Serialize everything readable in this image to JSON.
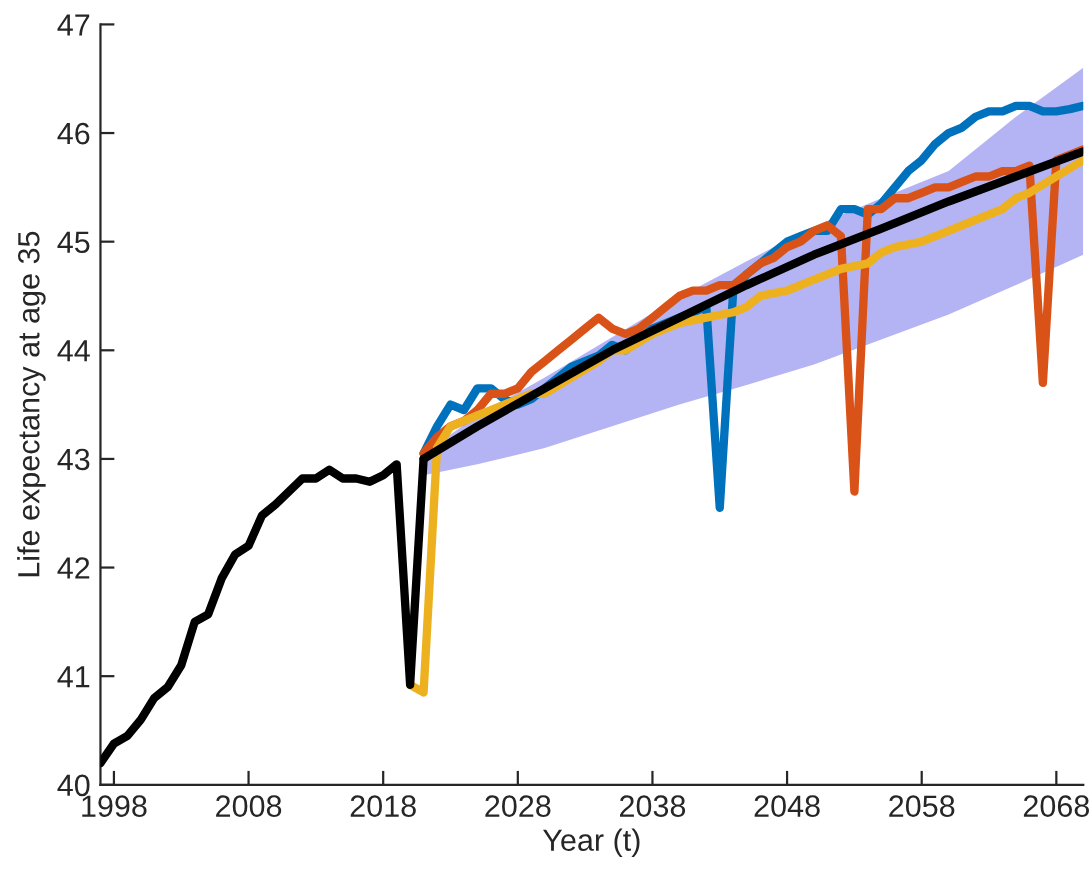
{
  "chart_data": {
    "type": "line",
    "xlabel": "Year (t)",
    "ylabel": "Life expectancy at age 35",
    "xlim": [
      1997,
      2070
    ],
    "ylim": [
      40,
      47
    ],
    "xticks": [
      1998,
      2008,
      2018,
      2028,
      2038,
      2048,
      2058,
      2068
    ],
    "yticks": [
      40,
      41,
      42,
      43,
      44,
      45,
      46,
      47
    ],
    "grid": false,
    "legend": false,
    "line_style": "solid",
    "marker": "none",
    "series": [
      {
        "color": "#0072bd",
        "x": [
          2021,
          2022,
          2023,
          2024,
          2025,
          2026,
          2027,
          2028,
          2029,
          2030,
          2031,
          2032,
          2033,
          2034,
          2035,
          2036,
          2037,
          2038,
          2039,
          2040,
          2041,
          2042,
          2043,
          2044,
          2045,
          2046,
          2047,
          2048,
          2049,
          2050,
          2051,
          2052,
          2053,
          2054,
          2055,
          2056,
          2057,
          2058,
          2059,
          2060,
          2061,
          2062,
          2063,
          2064,
          2065,
          2066,
          2067,
          2068,
          2069,
          2070
        ],
        "values": [
          43.05,
          43.3,
          43.5,
          43.45,
          43.65,
          43.65,
          43.55,
          43.5,
          43.55,
          43.65,
          43.75,
          43.85,
          43.9,
          43.95,
          44.05,
          44.0,
          44.1,
          44.2,
          44.25,
          44.3,
          44.35,
          44.4,
          42.55,
          44.55,
          44.7,
          44.8,
          44.9,
          45.0,
          45.05,
          45.1,
          45.1,
          45.3,
          45.3,
          45.25,
          45.35,
          45.5,
          45.65,
          45.75,
          45.9,
          46.0,
          46.05,
          46.15,
          46.2,
          46.2,
          46.25,
          46.25,
          46.2,
          46.2,
          46.22,
          46.25
        ]
      },
      {
        "color": "#d95319",
        "x": [
          2021,
          2022,
          2023,
          2024,
          2025,
          2026,
          2027,
          2028,
          2029,
          2030,
          2031,
          2032,
          2033,
          2034,
          2035,
          2036,
          2037,
          2038,
          2039,
          2040,
          2041,
          2042,
          2043,
          2044,
          2045,
          2046,
          2047,
          2048,
          2049,
          2050,
          2051,
          2052,
          2053,
          2054,
          2055,
          2056,
          2057,
          2058,
          2059,
          2060,
          2061,
          2062,
          2063,
          2064,
          2065,
          2066,
          2067,
          2068,
          2069,
          2070
        ],
        "values": [
          43.05,
          43.2,
          43.3,
          43.35,
          43.45,
          43.6,
          43.6,
          43.65,
          43.8,
          43.9,
          44.0,
          44.1,
          44.2,
          44.3,
          44.2,
          44.15,
          44.2,
          44.3,
          44.4,
          44.5,
          44.55,
          44.55,
          44.6,
          44.6,
          44.7,
          44.8,
          44.85,
          44.95,
          45.0,
          45.1,
          45.15,
          45.05,
          42.7,
          45.3,
          45.3,
          45.4,
          45.4,
          45.45,
          45.5,
          45.5,
          45.55,
          45.6,
          45.6,
          45.65,
          45.65,
          45.7,
          43.7,
          45.75,
          45.8,
          45.85
        ]
      },
      {
        "color": "#edb120",
        "x": [
          2020,
          2021,
          2022,
          2023,
          2024,
          2025,
          2026,
          2027,
          2028,
          2029,
          2030,
          2032,
          2034,
          2035,
          2036,
          2038,
          2040,
          2042,
          2044,
          2045,
          2046,
          2048,
          2050,
          2052,
          2054,
          2055,
          2056,
          2058,
          2060,
          2062,
          2064,
          2065,
          2066,
          2068,
          2070
        ],
        "values": [
          40.92,
          40.85,
          43.1,
          43.3,
          43.35,
          43.4,
          43.45,
          43.5,
          43.55,
          43.6,
          43.6,
          43.75,
          43.9,
          44.0,
          44.0,
          44.15,
          44.25,
          44.3,
          44.35,
          44.4,
          44.5,
          44.55,
          44.65,
          44.75,
          44.8,
          44.9,
          44.95,
          45.0,
          45.1,
          45.2,
          45.3,
          45.4,
          45.45,
          45.6,
          45.75
        ]
      },
      {
        "color": "#000000",
        "x": [
          1997,
          1998,
          1999,
          2000,
          2001,
          2002,
          2003,
          2004,
          2005,
          2006,
          2007,
          2008,
          2009,
          2010,
          2011,
          2012,
          2013,
          2014,
          2015,
          2016,
          2017,
          2018,
          2019,
          2020,
          2021
        ],
        "values": [
          40.2,
          40.38,
          40.45,
          40.6,
          40.8,
          40.9,
          41.1,
          41.5,
          41.57,
          41.9,
          42.12,
          42.2,
          42.48,
          42.58,
          42.7,
          42.82,
          42.82,
          42.9,
          42.82,
          42.82,
          42.79,
          42.85,
          42.95,
          40.92,
          43.0
        ]
      },
      {
        "color": "#000000",
        "x": [
          2021,
          2025,
          2030,
          2035,
          2040,
          2045,
          2050,
          2055,
          2060,
          2065,
          2070
        ],
        "values": [
          43.0,
          43.3,
          43.65,
          44.0,
          44.3,
          44.6,
          44.88,
          45.12,
          45.37,
          45.6,
          45.83
        ],
        "lower": [
          42.85,
          42.95,
          43.1,
          43.3,
          43.5,
          43.68,
          43.87,
          44.1,
          44.33,
          44.6,
          44.88
        ],
        "upper": [
          43.05,
          43.4,
          43.75,
          44.12,
          44.49,
          44.82,
          45.14,
          45.4,
          45.65,
          46.15,
          46.6
        ]
      }
    ]
  }
}
